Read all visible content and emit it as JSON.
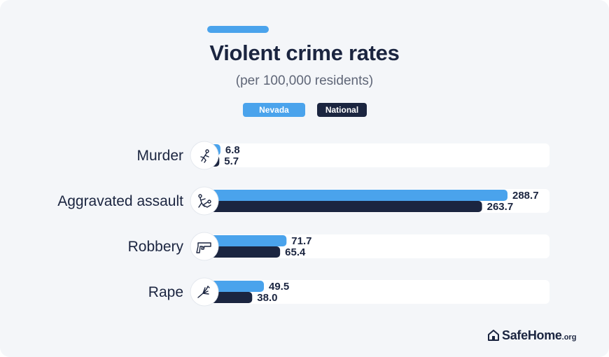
{
  "chart_data": {
    "type": "bar",
    "orientation": "horizontal",
    "title": "Violent crime rates",
    "subtitle": "(per 100,000 residents)",
    "categories": [
      "Murder",
      "Aggravated assault",
      "Robbery",
      "Rape"
    ],
    "category_icons": [
      "running-figure-icon",
      "assault-icon",
      "handgun-icon",
      "grabbing-hand-icon"
    ],
    "series": [
      {
        "name": "Nevada",
        "color": "#4aa3ec",
        "values": [
          6.8,
          288.7,
          71.7,
          49.5
        ],
        "labels": [
          "6.8",
          "288.7",
          "71.7",
          "49.5"
        ]
      },
      {
        "name": "National",
        "color": "#1b2540",
        "values": [
          5.7,
          263.7,
          65.4,
          38.0
        ],
        "labels": [
          "5.7",
          "263.7",
          "65.4",
          "38.0"
        ]
      }
    ],
    "xlim": [
      0,
      350
    ],
    "grid": false,
    "legend": "top-center"
  },
  "branding": {
    "logo_main": "SafeHome",
    "logo_suffix": ".org"
  },
  "colors": {
    "background": "#f4f6f9",
    "accent": "#4aa3ec",
    "dark": "#1b2540"
  }
}
